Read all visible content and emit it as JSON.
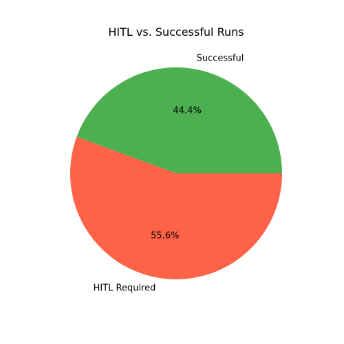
{
  "chart_data": {
    "type": "pie",
    "title": "HITL vs. Successful Runs",
    "start_angle_deg": 0,
    "direction": "counterclockwise",
    "slices": [
      {
        "label": "Successful",
        "value": 44.4,
        "pct_label": "44.4%",
        "color": "#4caf50"
      },
      {
        "label": "HITL Required",
        "value": 55.6,
        "pct_label": "55.6%",
        "color": "#ff6347"
      }
    ]
  }
}
